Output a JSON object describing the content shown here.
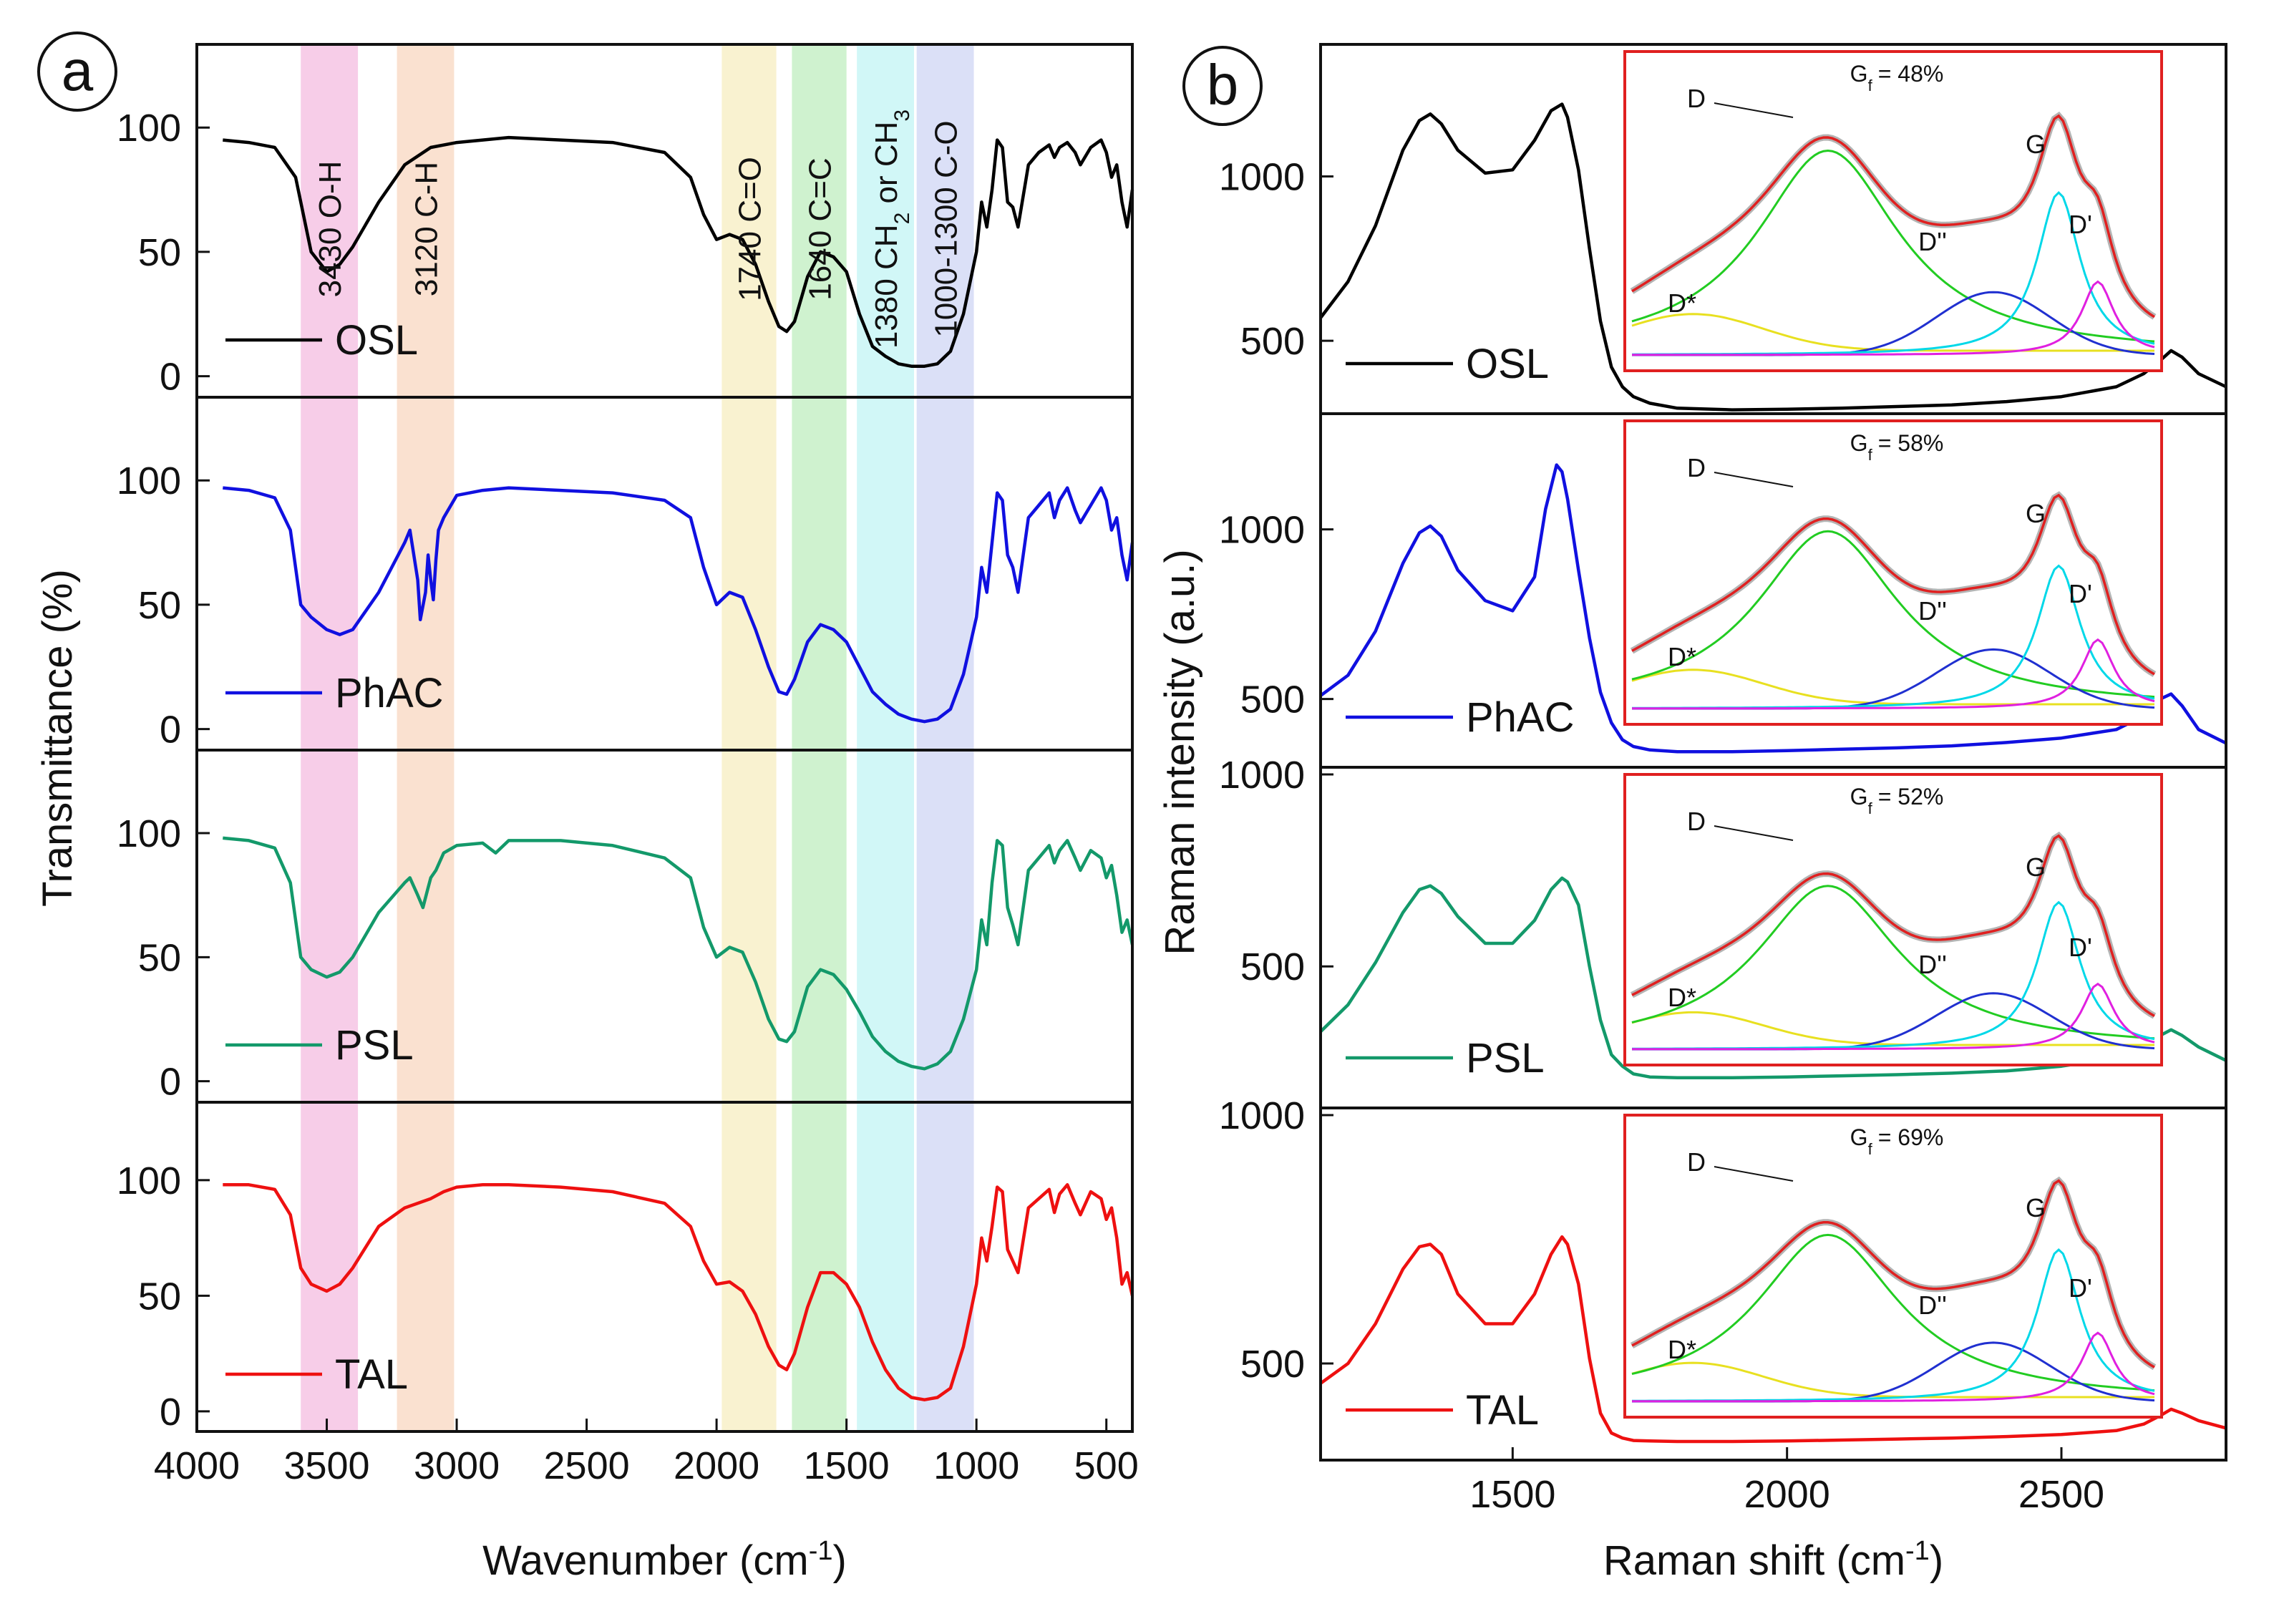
{
  "chart_data": [
    {
      "panel": "a",
      "type": "line",
      "subtype": "stacked FTIR spectra",
      "xlabel": "Wavenumber (cm",
      "xlabel_sup": "-1",
      "xlabel_end": ")",
      "ylabel": "Transmittance (%)",
      "xlim": [
        4000,
        400
      ],
      "ylim": [
        -5,
        130
      ],
      "xticks": [
        "4000",
        "3500",
        "3000",
        "2500",
        "2000",
        "1500",
        "1000",
        "500"
      ],
      "xtick_values": [
        4000,
        3500,
        3000,
        2500,
        2000,
        1500,
        1000,
        500
      ],
      "yticks": [
        "0",
        "50",
        "100"
      ],
      "ytick_values": [
        0,
        50,
        100
      ],
      "bands": [
        {
          "label": "3430 O-H",
          "from": 3600,
          "to": 3380,
          "color": "#f6c4e4"
        },
        {
          "label": "3120 C-H",
          "from": 3230,
          "to": 3010,
          "color": "#f9dcc8"
        },
        {
          "label": "1740 C=O",
          "from": 1980,
          "to": 1770,
          "color": "#f8f0c8"
        },
        {
          "label": "1640 C=C",
          "from": 1710,
          "to": 1500,
          "color": "#c7f0c7"
        },
        {
          "label_main": "1380 CH",
          "label_sub1": "2",
          "label_mid": " or CH",
          "label_sub2": "3",
          "from": 1460,
          "to": 1240,
          "color": "#c9f6f6"
        },
        {
          "label": "1000-1300 C-O",
          "from": 1230,
          "to": 1010,
          "color": "#d5daf6"
        }
      ],
      "series": [
        {
          "name": "OSL",
          "color": "#000000",
          "x": [
            3900,
            3800,
            3700,
            3620,
            3560,
            3500,
            3450,
            3400,
            3300,
            3200,
            3100,
            3000,
            2900,
            2800,
            2600,
            2400,
            2200,
            2100,
            2050,
            2000,
            1950,
            1900,
            1850,
            1800,
            1760,
            1730,
            1700,
            1650,
            1600,
            1550,
            1500,
            1450,
            1400,
            1350,
            1300,
            1250,
            1200,
            1150,
            1100,
            1050,
            1000,
            980,
            960,
            940,
            920,
            900,
            880,
            860,
            840,
            800,
            760,
            720,
            700,
            680,
            650,
            620,
            600,
            560,
            520,
            500,
            480,
            460,
            440,
            420,
            400
          ],
          "y": [
            95,
            94,
            92,
            80,
            50,
            42,
            45,
            52,
            70,
            85,
            92,
            94,
            95,
            96,
            95,
            94,
            90,
            80,
            65,
            55,
            57,
            55,
            45,
            30,
            20,
            18,
            22,
            40,
            50,
            48,
            42,
            25,
            12,
            8,
            5,
            4,
            4,
            5,
            10,
            25,
            50,
            70,
            60,
            75,
            95,
            92,
            70,
            68,
            60,
            85,
            90,
            93,
            88,
            92,
            94,
            90,
            85,
            92,
            95,
            90,
            80,
            85,
            70,
            60,
            75
          ]
        },
        {
          "name": "PhAC",
          "color": "#1010e0",
          "x": [
            3900,
            3800,
            3700,
            3640,
            3600,
            3560,
            3500,
            3450,
            3400,
            3300,
            3200,
            3180,
            3150,
            3140,
            3120,
            3110,
            3100,
            3090,
            3080,
            3070,
            3050,
            3000,
            2900,
            2800,
            2600,
            2400,
            2200,
            2100,
            2050,
            2000,
            1950,
            1900,
            1850,
            1800,
            1760,
            1730,
            1700,
            1650,
            1600,
            1550,
            1500,
            1450,
            1400,
            1350,
            1300,
            1250,
            1200,
            1150,
            1100,
            1050,
            1000,
            980,
            960,
            940,
            920,
            900,
            880,
            860,
            840,
            800,
            760,
            720,
            700,
            680,
            650,
            620,
            600,
            560,
            520,
            500,
            480,
            460,
            440,
            420,
            400
          ],
          "y": [
            97,
            96,
            93,
            80,
            50,
            45,
            40,
            38,
            40,
            55,
            75,
            80,
            60,
            44,
            55,
            70,
            60,
            52,
            68,
            80,
            85,
            94,
            96,
            97,
            96,
            95,
            92,
            85,
            65,
            50,
            55,
            53,
            40,
            25,
            15,
            14,
            20,
            35,
            42,
            40,
            35,
            25,
            15,
            10,
            6,
            4,
            3,
            4,
            8,
            22,
            45,
            65,
            55,
            75,
            95,
            92,
            70,
            65,
            55,
            85,
            90,
            95,
            85,
            92,
            97,
            88,
            83,
            90,
            97,
            92,
            80,
            85,
            70,
            60,
            75
          ]
        },
        {
          "name": "PSL",
          "color": "#13996a",
          "x": [
            3900,
            3800,
            3700,
            3640,
            3600,
            3560,
            3500,
            3450,
            3400,
            3300,
            3200,
            3180,
            3150,
            3130,
            3110,
            3100,
            3080,
            3050,
            3000,
            2900,
            2850,
            2800,
            2600,
            2400,
            2200,
            2100,
            2050,
            2000,
            1950,
            1900,
            1850,
            1800,
            1760,
            1730,
            1700,
            1650,
            1600,
            1550,
            1500,
            1450,
            1400,
            1350,
            1300,
            1250,
            1200,
            1150,
            1100,
            1050,
            1000,
            980,
            960,
            940,
            920,
            900,
            880,
            860,
            840,
            800,
            760,
            720,
            700,
            680,
            650,
            620,
            600,
            560,
            520,
            500,
            480,
            460,
            440,
            420,
            400
          ],
          "y": [
            98,
            97,
            94,
            80,
            50,
            45,
            42,
            44,
            50,
            68,
            80,
            82,
            75,
            70,
            78,
            82,
            85,
            92,
            95,
            96,
            92,
            97,
            97,
            95,
            90,
            82,
            62,
            50,
            54,
            52,
            40,
            25,
            17,
            16,
            20,
            38,
            45,
            43,
            37,
            28,
            18,
            12,
            8,
            6,
            5,
            7,
            12,
            25,
            45,
            65,
            55,
            80,
            97,
            95,
            70,
            63,
            55,
            85,
            90,
            95,
            88,
            93,
            97,
            90,
            85,
            93,
            90,
            82,
            87,
            75,
            60,
            65,
            55
          ]
        },
        {
          "name": "TAL",
          "color": "#ee1010",
          "x": [
            3900,
            3800,
            3700,
            3640,
            3600,
            3560,
            3500,
            3450,
            3400,
            3300,
            3200,
            3100,
            3050,
            3000,
            2900,
            2800,
            2600,
            2400,
            2200,
            2100,
            2050,
            2000,
            1950,
            1900,
            1850,
            1800,
            1760,
            1730,
            1700,
            1650,
            1600,
            1550,
            1500,
            1450,
            1400,
            1350,
            1300,
            1250,
            1200,
            1150,
            1100,
            1050,
            1000,
            980,
            960,
            940,
            920,
            900,
            880,
            860,
            840,
            800,
            760,
            720,
            700,
            680,
            650,
            620,
            600,
            560,
            520,
            500,
            480,
            460,
            440,
            420,
            400
          ],
          "y": [
            98,
            98,
            96,
            85,
            62,
            55,
            52,
            55,
            62,
            80,
            88,
            92,
            95,
            97,
            98,
            98,
            97,
            95,
            90,
            80,
            65,
            55,
            56,
            52,
            42,
            28,
            20,
            18,
            25,
            45,
            60,
            60,
            55,
            45,
            30,
            18,
            10,
            6,
            5,
            6,
            10,
            28,
            55,
            75,
            65,
            80,
            97,
            95,
            70,
            65,
            60,
            88,
            92,
            96,
            86,
            94,
            98,
            90,
            85,
            95,
            92,
            83,
            88,
            75,
            55,
            60,
            50
          ]
        }
      ],
      "legend_placement": "left of each subpanel"
    },
    {
      "panel": "b",
      "type": "line",
      "subtype": "stacked Raman spectra with deconvolution insets",
      "xlabel": "Raman shift (cm",
      "xlabel_sup": "-1",
      "xlabel_end": ")",
      "ylabel": "Raman intensity (a.u.)",
      "xlim": [
        1150,
        2800
      ],
      "xticks": [
        "1500",
        "2000",
        "2500"
      ],
      "xtick_values": [
        1500,
        2000,
        2500
      ],
      "subpanels": [
        {
          "name": "OSL",
          "color": "#000000",
          "ylim": [
            300,
            1380
          ],
          "yticks": [
            "500",
            "1000"
          ],
          "ytick_values": [
            500,
            1000
          ],
          "gf": "= 48%",
          "x": [
            1150,
            1200,
            1250,
            1300,
            1330,
            1350,
            1370,
            1400,
            1450,
            1500,
            1540,
            1570,
            1590,
            1600,
            1620,
            1640,
            1660,
            1680,
            1700,
            1720,
            1750,
            1800,
            1900,
            2000,
            2100,
            2200,
            2300,
            2400,
            2500,
            2600,
            2650,
            2680,
            2700,
            2720,
            2750,
            2800
          ],
          "y": [
            570,
            680,
            850,
            1080,
            1170,
            1190,
            1160,
            1080,
            1010,
            1020,
            1110,
            1200,
            1220,
            1180,
            1020,
            780,
            560,
            420,
            360,
            330,
            310,
            295,
            290,
            292,
            295,
            300,
            305,
            315,
            330,
            360,
            400,
            440,
            470,
            450,
            400,
            360
          ]
        },
        {
          "name": "PhAC",
          "color": "#1010e0",
          "ylim": [
            320,
            1320
          ],
          "yticks": [
            "500",
            "1000"
          ],
          "ytick_values": [
            500,
            1000
          ],
          "gf": "= 58%",
          "x": [
            1150,
            1200,
            1250,
            1300,
            1330,
            1350,
            1370,
            1400,
            1450,
            1500,
            1540,
            1560,
            1580,
            1590,
            1600,
            1620,
            1640,
            1660,
            1680,
            1700,
            1720,
            1750,
            1800,
            1900,
            2000,
            2100,
            2200,
            2300,
            2400,
            2500,
            2600,
            2650,
            2680,
            2700,
            2720,
            2750,
            2800
          ],
          "y": [
            510,
            570,
            700,
            900,
            990,
            1010,
            980,
            880,
            790,
            760,
            860,
            1060,
            1190,
            1170,
            1090,
            880,
            680,
            520,
            430,
            380,
            360,
            350,
            345,
            345,
            348,
            352,
            356,
            362,
            372,
            385,
            410,
            450,
            500,
            515,
            480,
            410,
            370
          ]
        },
        {
          "name": "PSL",
          "color": "#13996a",
          "ylim": [
            150,
            1000
          ],
          "yticks": [
            "500",
            "1000"
          ],
          "ytick_values": [
            500,
            1000
          ],
          "gf": "= 52%",
          "x": [
            1150,
            1200,
            1250,
            1300,
            1330,
            1350,
            1370,
            1400,
            1450,
            1500,
            1540,
            1570,
            1590,
            1600,
            1620,
            1640,
            1660,
            1680,
            1700,
            1720,
            1750,
            1800,
            1900,
            2000,
            2100,
            2200,
            2300,
            2400,
            2500,
            2600,
            2650,
            2680,
            2700,
            2720,
            2750,
            2800
          ],
          "y": [
            330,
            400,
            510,
            640,
            700,
            710,
            690,
            630,
            560,
            560,
            620,
            700,
            730,
            720,
            660,
            500,
            360,
            270,
            240,
            220,
            212,
            210,
            210,
            212,
            215,
            218,
            222,
            228,
            240,
            262,
            290,
            320,
            335,
            320,
            290,
            255
          ]
        },
        {
          "name": "TAL",
          "color": "#ee1010",
          "ylim": [
            320,
            1000
          ],
          "yticks": [
            "500",
            "1000"
          ],
          "ytick_values": [
            500,
            1000
          ],
          "gf": "= 69%",
          "x": [
            1150,
            1200,
            1250,
            1300,
            1330,
            1350,
            1370,
            1400,
            1450,
            1500,
            1540,
            1570,
            1590,
            1600,
            1620,
            1640,
            1660,
            1680,
            1700,
            1720,
            1750,
            1800,
            1900,
            2000,
            2100,
            2200,
            2300,
            2400,
            2500,
            2600,
            2650,
            2680,
            2700,
            2720,
            2750,
            2800
          ],
          "y": [
            460,
            500,
            580,
            690,
            735,
            740,
            720,
            640,
            580,
            580,
            640,
            720,
            755,
            740,
            660,
            510,
            400,
            360,
            350,
            345,
            344,
            343,
            343,
            344,
            346,
            348,
            350,
            353,
            357,
            365,
            378,
            395,
            408,
            400,
            385,
            370
          ]
        }
      ],
      "inset_labels": {
        "d": "D",
        "g": "G",
        "dprime": "D'",
        "ddouble": "D''",
        "dstar": "D*",
        "gf_prefix": "G",
        "gf_sub": "f"
      },
      "inset_component_colors": {
        "d": "#22cc22",
        "g": "#00d8e8",
        "dprime": "#e020e0",
        "ddouble": "#2030d0",
        "dstar": "#e8e020",
        "fit": "#e02020",
        "data": "#777777",
        "frame": "#e02020"
      }
    }
  ],
  "panel_labels": {
    "a": "a",
    "b": "b"
  }
}
